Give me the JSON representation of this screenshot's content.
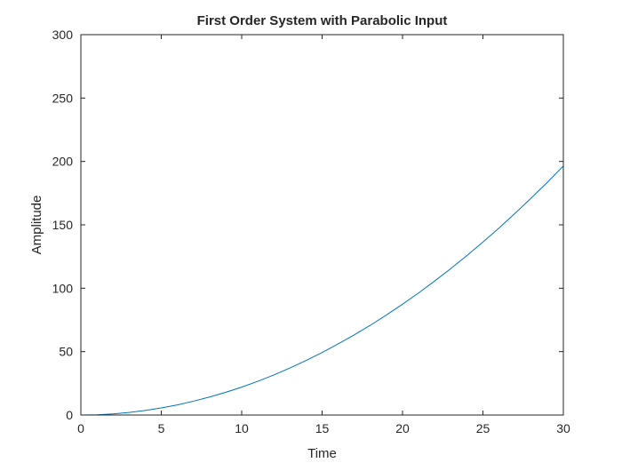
{
  "chart_data": {
    "type": "line",
    "title": "First Order System with Parabolic Input",
    "xlabel": "Time",
    "ylabel": "Amplitude",
    "xlim": [
      0,
      30
    ],
    "ylim": [
      0,
      300
    ],
    "xticks": [
      0,
      5,
      10,
      15,
      20,
      25,
      30
    ],
    "yticks": [
      0,
      50,
      100,
      150,
      200,
      250,
      300
    ],
    "grid": false,
    "line_color": "#0072BD",
    "series": [
      {
        "values": [
          [
            0,
            0
          ],
          [
            1,
            0.2
          ],
          [
            2,
            0.9
          ],
          [
            3,
            2.0
          ],
          [
            4,
            3.6
          ],
          [
            5,
            5.6
          ],
          [
            6,
            8.0
          ],
          [
            7,
            10.9
          ],
          [
            8,
            14.2
          ],
          [
            9,
            17.9
          ],
          [
            10,
            22.0
          ],
          [
            11,
            26.6
          ],
          [
            12,
            31.6
          ],
          [
            13,
            37.1
          ],
          [
            14,
            43.0
          ],
          [
            15,
            49.3
          ],
          [
            16,
            56.1
          ],
          [
            17,
            63.2
          ],
          [
            18,
            70.8
          ],
          [
            19,
            78.9
          ],
          [
            20,
            87.4
          ],
          [
            21,
            96.3
          ],
          [
            22,
            105.7
          ],
          [
            23,
            115.5
          ],
          [
            24,
            125.7
          ],
          [
            25,
            136.4
          ],
          [
            26,
            147.5
          ],
          [
            27,
            159.1
          ],
          [
            28,
            171.1
          ],
          [
            29,
            183.5
          ],
          [
            30,
            196.4
          ]
        ]
      }
    ]
  }
}
